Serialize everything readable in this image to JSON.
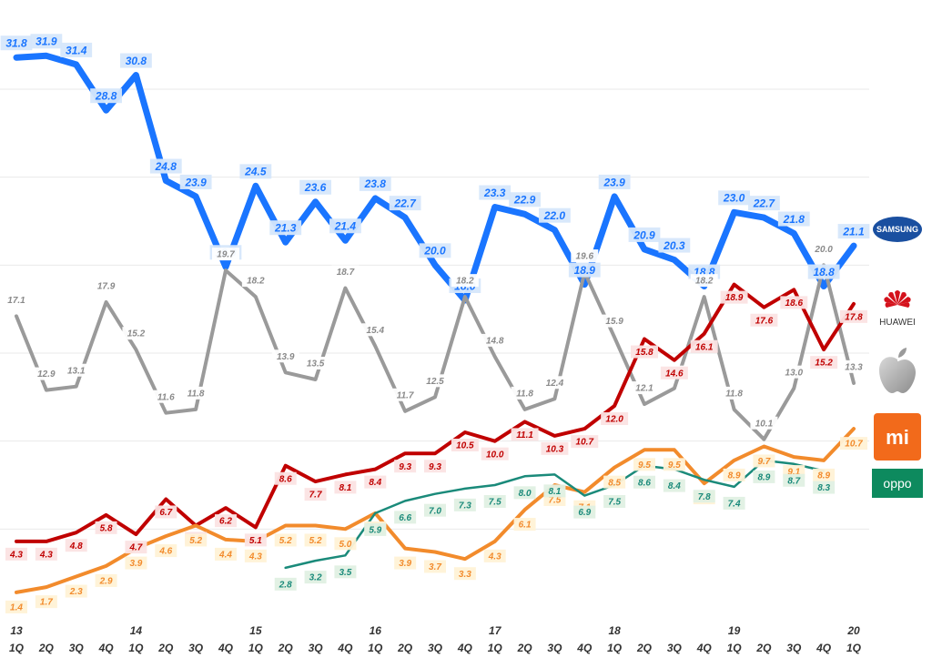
{
  "chart_data": {
    "type": "line",
    "title": "",
    "xlabel": "",
    "ylabel": "",
    "ylim": [
      0,
      33
    ],
    "grid": true,
    "legend": "right (brand logos)",
    "categories": [
      "13 1Q",
      "2Q",
      "3Q",
      "4Q",
      "14 1Q",
      "2Q",
      "3Q",
      "4Q",
      "15 1Q",
      "2Q",
      "3Q",
      "4Q",
      "16 1Q",
      "2Q",
      "3Q",
      "4Q",
      "17 1Q",
      "2Q",
      "3Q",
      "4Q",
      "18 1Q",
      "2Q",
      "3Q",
      "4Q",
      "19 1Q",
      "2Q",
      "3Q",
      "4Q",
      "20 1Q"
    ],
    "tick_years": [
      "13",
      "",
      "",
      "",
      "14",
      "",
      "",
      "",
      "15",
      "",
      "",
      "",
      "16",
      "",
      "",
      "",
      "17",
      "",
      "",
      "",
      "18",
      "",
      "",
      "",
      "19",
      "",
      "",
      "",
      "20"
    ],
    "tick_quarters": [
      "1Q",
      "2Q",
      "3Q",
      "4Q",
      "1Q",
      "2Q",
      "3Q",
      "4Q",
      "1Q",
      "2Q",
      "3Q",
      "4Q",
      "1Q",
      "2Q",
      "3Q",
      "4Q",
      "1Q",
      "2Q",
      "3Q",
      "4Q",
      "1Q",
      "2Q",
      "3Q",
      "4Q",
      "1Q",
      "2Q",
      "3Q",
      "4Q",
      "1Q"
    ],
    "series": [
      {
        "name": "SAMSUNG",
        "color": "#1a75ff",
        "label_bg": "#d6e7fb",
        "label_color": "#1a75ff",
        "values": [
          31.8,
          31.9,
          31.4,
          28.8,
          30.8,
          24.8,
          23.9,
          19.9,
          24.5,
          21.3,
          23.6,
          21.4,
          23.8,
          22.7,
          20.0,
          18.0,
          23.3,
          22.9,
          22.0,
          18.9,
          23.9,
          20.9,
          20.3,
          18.8,
          23.0,
          22.7,
          21.8,
          18.8,
          21.1
        ]
      },
      {
        "name": "Apple",
        "color": "#9a9a9a",
        "label_bg": "#ffffff",
        "label_color": "#8a8a8a",
        "values": [
          17.1,
          12.9,
          13.1,
          17.9,
          15.2,
          11.6,
          11.8,
          19.7,
          18.2,
          13.9,
          13.5,
          18.7,
          15.4,
          11.7,
          12.5,
          18.2,
          14.8,
          11.8,
          12.4,
          19.6,
          15.9,
          12.1,
          13.0,
          18.2,
          11.8,
          10.1,
          13.0,
          20.0,
          13.3
        ]
      },
      {
        "name": "HUAWEI",
        "color": "#c00000",
        "label_bg": "#fbe3e3",
        "label_color": "#c00000",
        "values": [
          4.3,
          4.3,
          4.8,
          5.8,
          4.7,
          6.7,
          5.2,
          6.2,
          5.1,
          8.6,
          7.7,
          8.1,
          8.4,
          9.3,
          9.3,
          10.5,
          10.0,
          11.1,
          10.3,
          10.7,
          12.0,
          15.8,
          14.6,
          16.1,
          18.9,
          17.6,
          18.6,
          15.2,
          17.8
        ]
      },
      {
        "name": "Xiaomi",
        "color": "#f28b2c",
        "label_bg": "#fff2d6",
        "label_color": "#f28b2c",
        "values": [
          1.4,
          1.7,
          2.3,
          2.9,
          3.9,
          4.6,
          5.2,
          4.4,
          4.3,
          5.2,
          5.2,
          5.0,
          5.9,
          3.9,
          3.7,
          3.3,
          4.3,
          6.1,
          7.5,
          7.1,
          8.5,
          9.5,
          9.5,
          7.6,
          8.9,
          9.7,
          9.1,
          8.9,
          10.7
        ]
      },
      {
        "name": "OPPO",
        "color": "#1a8a7a",
        "label_bg": "#e0f0e3",
        "label_color": "#1a8a7a",
        "values": [
          null,
          null,
          null,
          null,
          null,
          null,
          null,
          null,
          null,
          2.8,
          3.2,
          3.5,
          5.9,
          6.6,
          7.0,
          7.3,
          7.5,
          8.0,
          8.1,
          6.9,
          7.5,
          8.6,
          8.4,
          7.8,
          7.4,
          8.9,
          8.7,
          8.3,
          null
        ]
      }
    ]
  },
  "legend_logos": [
    {
      "name": "SAMSUNG",
      "text": "SAMSUNG"
    },
    {
      "name": "HUAWEI",
      "text": "HUAWEI"
    },
    {
      "name": "Apple",
      "text": ""
    },
    {
      "name": "Xiaomi",
      "text": "mi"
    },
    {
      "name": "OPPO",
      "text": "oppo"
    }
  ]
}
